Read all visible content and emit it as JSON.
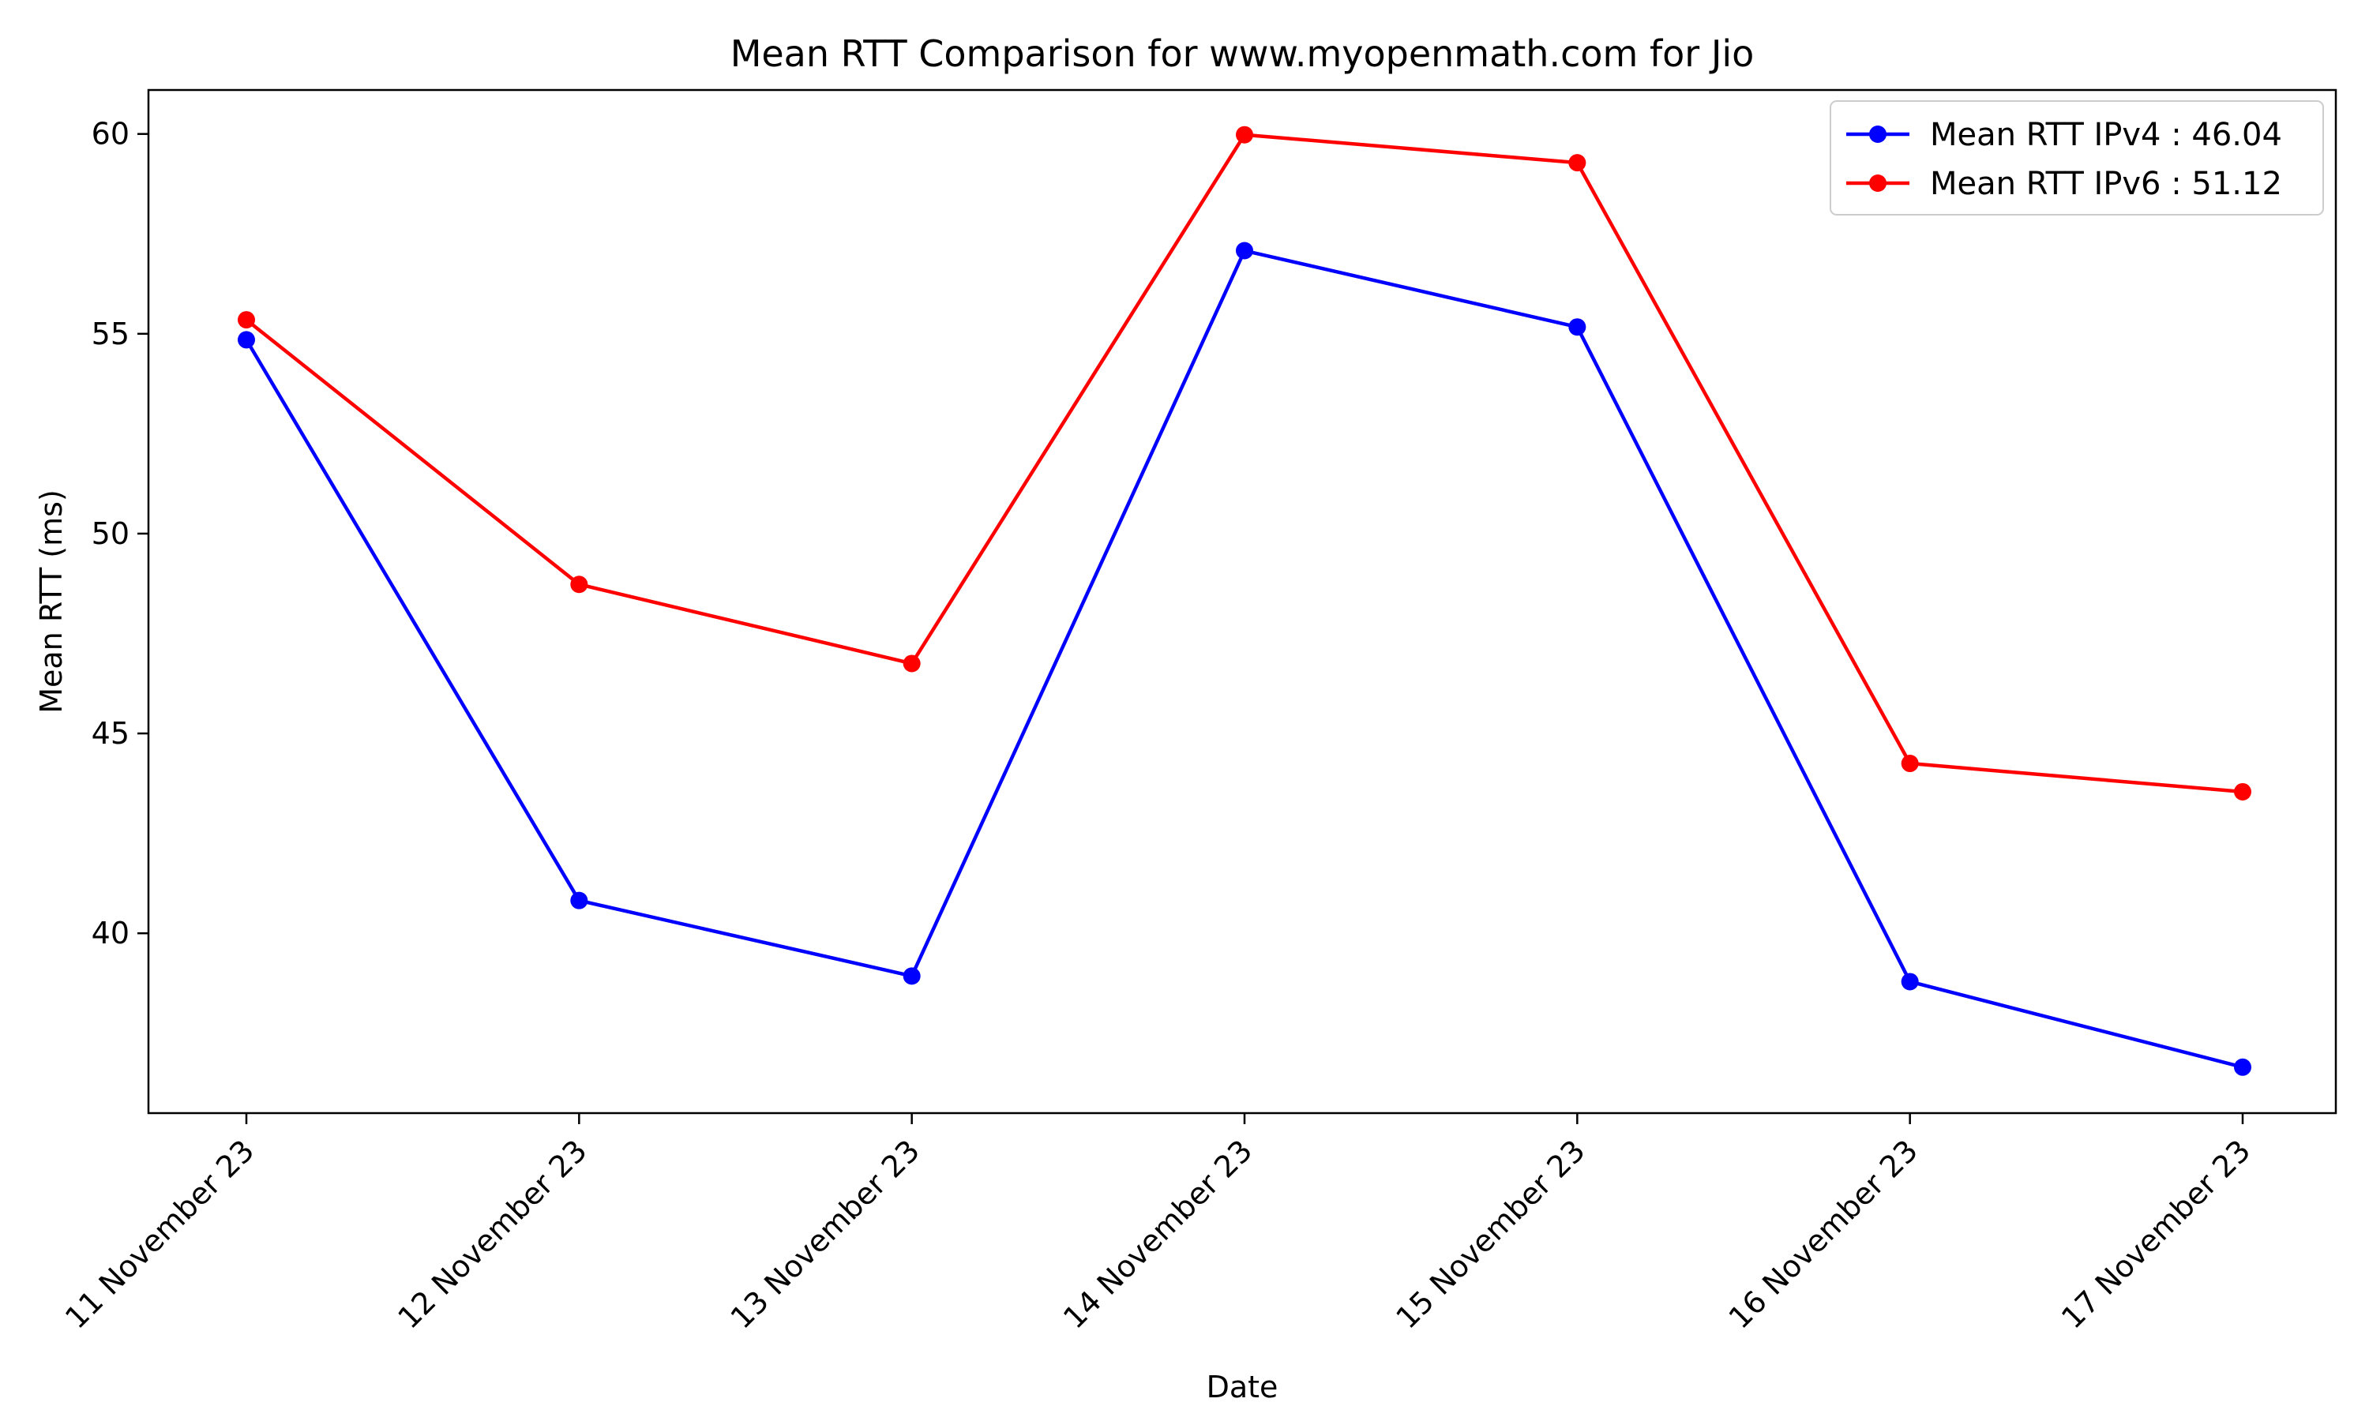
{
  "chart_data": {
    "type": "line",
    "title": "Mean RTT Comparison for www.myopenmath.com for Jio",
    "xlabel": "Date",
    "ylabel": "Mean RTT (ms)",
    "categories": [
      "11 November 23",
      "12 November 23",
      "13 November 23",
      "14 November 23",
      "15 November 23",
      "16 November 23",
      "17 November 23"
    ],
    "ylim": [
      35.5,
      61.1
    ],
    "yticks": [
      40,
      45,
      50,
      55,
      60
    ],
    "grid": false,
    "legend_position": "top-right",
    "series": [
      {
        "name": "Mean RTT IPv4 : 46.04",
        "color": "#0000ff",
        "values": [
          54.85,
          40.82,
          38.93,
          57.08,
          55.17,
          38.79,
          36.65
        ]
      },
      {
        "name": "Mean RTT IPv6 : 51.12",
        "color": "#ff0000",
        "values": [
          55.35,
          48.73,
          46.75,
          59.98,
          59.28,
          44.25,
          43.54
        ]
      }
    ]
  }
}
